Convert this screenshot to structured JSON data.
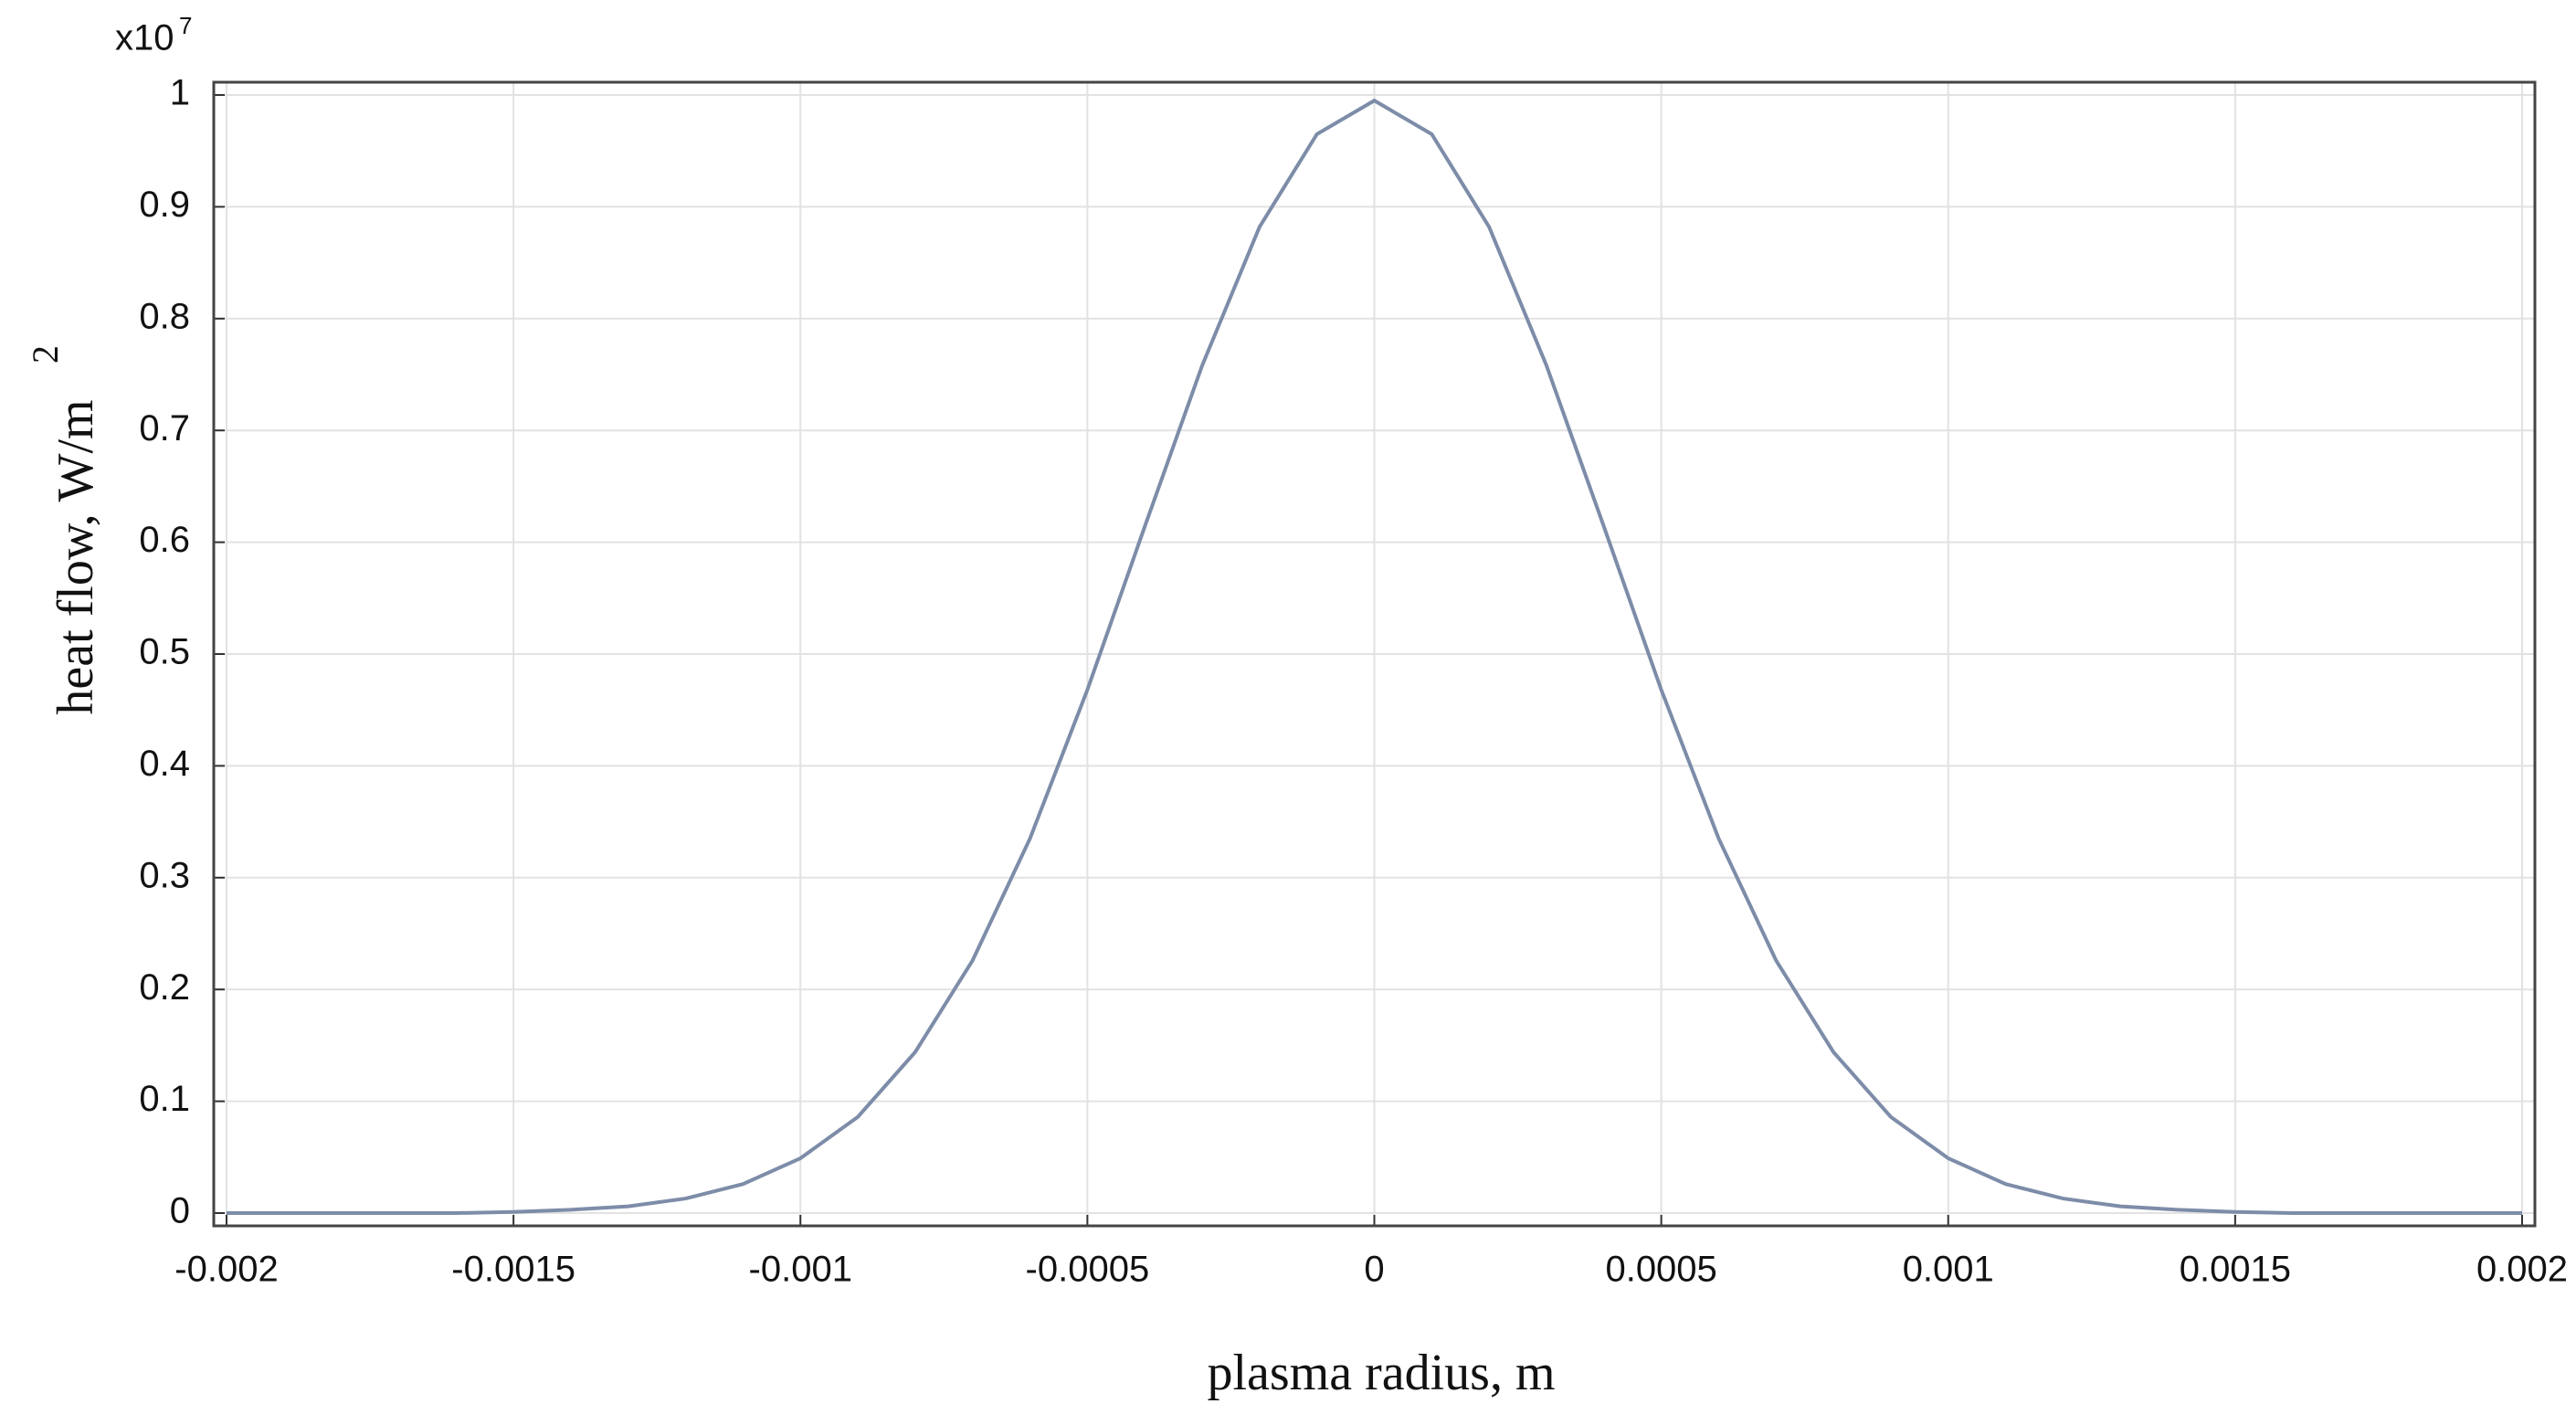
{
  "chart_data": {
    "type": "line",
    "xlabel": "plasma radius, m",
    "ylabel": "heat flow, W/m",
    "ylabel_superscript": "2",
    "y_multiplier": "x10",
    "y_multiplier_exponent": "7",
    "x": [
      -0.002,
      -0.0019,
      -0.0018,
      -0.0017,
      -0.0016,
      -0.0015,
      -0.0014,
      -0.0013,
      -0.0012,
      -0.0011,
      -0.001,
      -0.0009,
      -0.0008,
      -0.0007,
      -0.0006,
      -0.0005,
      -0.0004,
      -0.0003,
      -0.0002,
      -0.0001,
      0,
      0.0001,
      0.0002,
      0.0003,
      0.0004,
      0.0005,
      0.0006,
      0.0007,
      0.0008,
      0.0009,
      0.001,
      0.0011,
      0.0012,
      0.0013,
      0.0014,
      0.0015,
      0.0016,
      0.0017,
      0.0018,
      0.0019,
      0.002
    ],
    "series": [
      {
        "color": "#7d8ca8",
        "values": [
          0,
          0,
          0,
          0,
          0,
          0.001,
          0.003,
          0.006,
          0.013,
          0.026,
          0.049,
          0.086,
          0.144,
          0.226,
          0.335,
          0.468,
          0.614,
          0.758,
          0.882,
          0.965,
          0.995,
          0.965,
          0.882,
          0.758,
          0.614,
          0.468,
          0.335,
          0.226,
          0.144,
          0.086,
          0.049,
          0.026,
          0.013,
          0.006,
          0.003,
          0.001,
          0,
          0,
          0,
          0,
          0
        ]
      }
    ],
    "xlim": [
      -0.002,
      0.002
    ],
    "ylim": [
      0,
      1
    ],
    "xticks": [
      -0.002,
      -0.0015,
      -0.001,
      -0.0005,
      0,
      0.0005,
      0.001,
      0.0015,
      0.002
    ],
    "yticks": [
      0,
      0.1,
      0.2,
      0.3,
      0.4,
      0.5,
      0.6,
      0.7,
      0.8,
      0.9,
      1
    ],
    "grid": true
  }
}
